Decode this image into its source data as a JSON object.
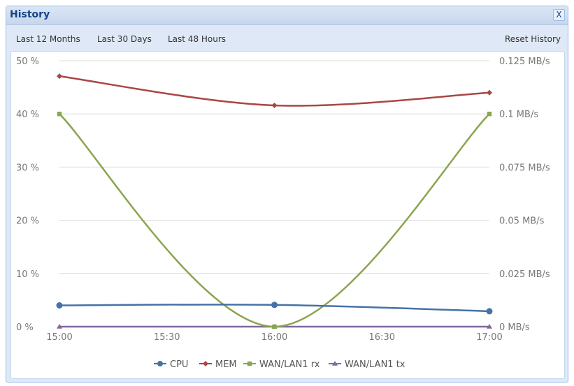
{
  "window": {
    "title": "History",
    "close_label": "X"
  },
  "toolbar": {
    "items": [
      "Last 12 Months",
      "Last 30 Days",
      "Last 48 Hours"
    ],
    "reset": "Reset History"
  },
  "chart_data": {
    "type": "line",
    "x": [
      "15:00",
      "16:00",
      "17:00"
    ],
    "xticks": [
      "15:00",
      "15:30",
      "16:00",
      "16:30",
      "17:00"
    ],
    "left_axis": {
      "ticks": [
        "0 %",
        "10 %",
        "20 %",
        "30 %",
        "40 %",
        "50 %"
      ],
      "ylim": [
        0,
        50
      ]
    },
    "right_axis": {
      "ticks": [
        "0 MB/s",
        "0.025 MB/s",
        "0.05 MB/s",
        "0.075 MB/s",
        "0.1 MB/s",
        "0.125 MB/s"
      ],
      "ylim": [
        0,
        0.125
      ]
    },
    "grid": true,
    "legend": "bottom",
    "series": [
      {
        "name": "CPU",
        "axis": "left",
        "values": [
          4.0,
          4.1,
          2.9
        ],
        "color": "#4572a7"
      },
      {
        "name": "MEM",
        "axis": "left",
        "values": [
          47.1,
          41.6,
          44.0
        ],
        "color": "#aa4643"
      },
      {
        "name": "WAN/LAN1 rx",
        "axis": "right",
        "values": [
          0.1,
          0,
          0.1
        ],
        "color": "#89a54e"
      },
      {
        "name": "WAN/LAN1 tx",
        "axis": "right",
        "values": [
          0,
          0,
          0
        ],
        "color": "#80699b"
      }
    ]
  }
}
